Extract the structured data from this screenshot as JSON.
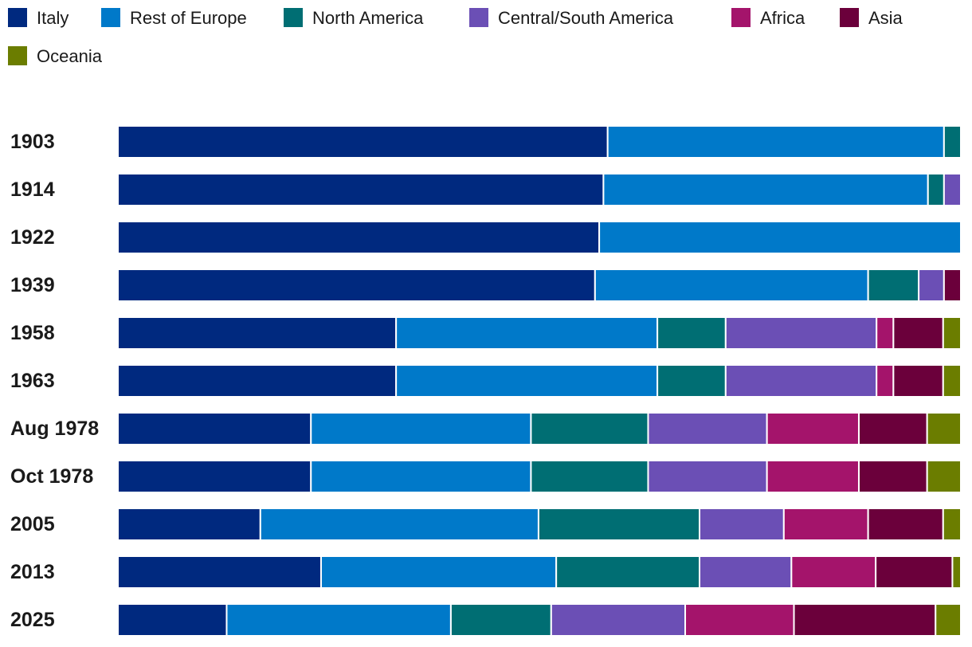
{
  "chart_data": {
    "type": "bar",
    "orientation": "horizontal",
    "stacked": true,
    "normalized": true,
    "title": "",
    "xlabel": "",
    "ylabel": "",
    "xlim": [
      0,
      100
    ],
    "grid": false,
    "legend_position": "top",
    "categories": [
      "1903",
      "1914",
      "1922",
      "1939",
      "1958",
      "1963",
      "Aug 1978",
      "Oct 1978",
      "2005",
      "2013",
      "2025"
    ],
    "series": [
      {
        "name": "Italy",
        "color": "#00297f",
        "values": [
          58.1,
          57.6,
          57.1,
          56.6,
          33.0,
          33.0,
          22.9,
          22.9,
          16.9,
          24.1,
          12.9
        ]
      },
      {
        "name": "Rest of Europe",
        "color": "#0079c9",
        "values": [
          39.9,
          38.5,
          42.9,
          32.4,
          31.0,
          31.0,
          26.1,
          26.1,
          33.0,
          27.9,
          26.6
        ]
      },
      {
        "name": "North America",
        "color": "#006e73",
        "values": [
          2.0,
          1.9,
          0.0,
          6.0,
          8.1,
          8.1,
          13.9,
          13.9,
          19.1,
          17.0,
          11.9
        ]
      },
      {
        "name": "Central/South America",
        "color": "#6b4fb5",
        "values": [
          0.0,
          2.0,
          0.0,
          3.0,
          17.9,
          17.9,
          14.1,
          14.1,
          10.0,
          10.9,
          15.9
        ]
      },
      {
        "name": "Africa",
        "color": "#a4146b",
        "values": [
          0.0,
          0.0,
          0.0,
          0.0,
          2.0,
          2.0,
          10.9,
          10.9,
          10.0,
          10.0,
          12.9
        ]
      },
      {
        "name": "Asia",
        "color": "#6b003b",
        "values": [
          0.0,
          0.0,
          0.0,
          2.0,
          5.9,
          5.9,
          8.1,
          8.1,
          8.9,
          9.1,
          16.8
        ]
      },
      {
        "name": "Oceania",
        "color": "#6b7d00",
        "values": [
          0.0,
          0.0,
          0.0,
          0.0,
          2.1,
          2.1,
          4.0,
          4.0,
          2.1,
          1.0,
          3.0
        ]
      }
    ]
  }
}
